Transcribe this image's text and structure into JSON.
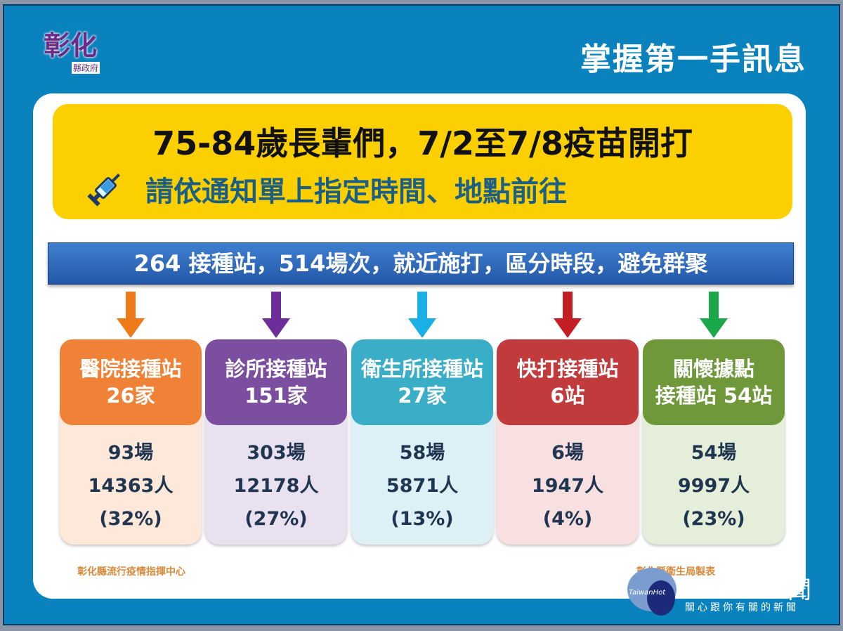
{
  "logo": {
    "main": "彰化",
    "sub": "縣政府"
  },
  "header": {
    "title": "掌握第一手訊息"
  },
  "banner": {
    "line1": "75-84歲長輩們，7/2至7/8疫苗開打",
    "line2": "請依通知單上指定時間、地點前往",
    "icon": "syringe-icon"
  },
  "summary": "264 接種站，514場次，就近施打，區分時段，避免群聚",
  "columns": [
    {
      "name": "醫院接種站",
      "count": "26家",
      "sessions": "93場",
      "people": "14363人",
      "percent": "(32%)",
      "color": "#ef8236",
      "tint": "#fde8da"
    },
    {
      "name": "診所接種站",
      "count": "151家",
      "sessions": "303場",
      "people": "12178人",
      "percent": "(27%)",
      "color": "#7b4ea0",
      "tint": "#e9e0f0"
    },
    {
      "name": "衛生所接種站",
      "count": "27家",
      "sessions": "58場",
      "people": "5871人",
      "percent": "(13%)",
      "color": "#3aaec7",
      "tint": "#dcf0f6"
    },
    {
      "name": "快打接種站",
      "count": "6站",
      "sessions": "6場",
      "people": "1947人",
      "percent": "(4%)",
      "color": "#c13a3c",
      "tint": "#f8e0e0"
    },
    {
      "name": "關懷據點",
      "count": "接種站 54站",
      "sessions": "54場",
      "people": "9997人",
      "percent": "(23%)",
      "color": "#6e983a",
      "tint": "#e4eed8"
    }
  ],
  "arrow_colors": [
    "#ef7a1a",
    "#6e2e9a",
    "#1ab0e6",
    "#c41e24",
    "#1aa84a"
  ],
  "footer": {
    "left": "彰化縣流行疫情指揮中心",
    "right": "彰化縣衛生局製表"
  },
  "watermark": {
    "brand": "TaiwanHot",
    "slogan": "關心跟你有關的新聞",
    "tail": "聞"
  }
}
